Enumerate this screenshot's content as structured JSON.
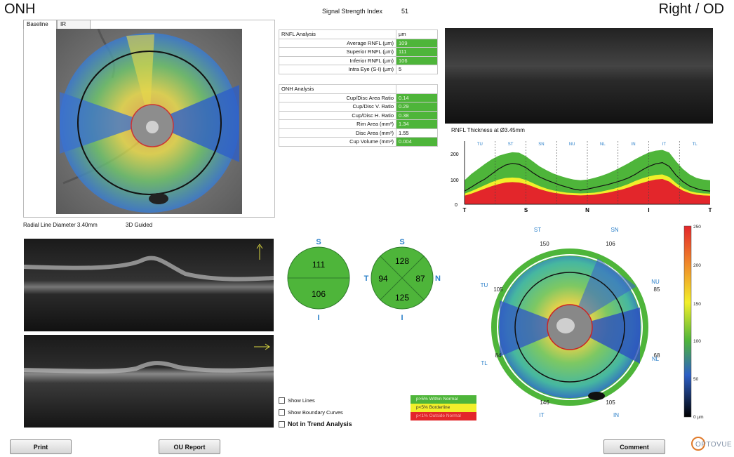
{
  "header": {
    "scan_type": "ONH",
    "eye": "Right / OD",
    "ssi_label": "Signal Strength Index",
    "ssi_value": "51"
  },
  "fundus": {
    "tabs": [
      "Baseline",
      "IR"
    ],
    "radial_line_label": "Radial Line Diameter 3.40mm",
    "mode_label": "3D Guided"
  },
  "rnfl_table": {
    "header": "RNFL Analysis",
    "unit": "µm",
    "rows": [
      {
        "label": "Average RNFL (µm)",
        "value": "109",
        "status": "green"
      },
      {
        "label": "Superior RNFL (µm)",
        "value": "111",
        "status": "green"
      },
      {
        "label": "Inferior RNFL (µm)",
        "value": "106",
        "status": "green"
      },
      {
        "label": "Intra Eye (S-I) (µm)",
        "value": "5",
        "status": "none"
      }
    ]
  },
  "onh_table": {
    "header": "ONH Analysis",
    "rows": [
      {
        "label": "Cup/Disc Area Ratio",
        "value": "0.14",
        "status": "green"
      },
      {
        "label": "Cup/Disc V. Ratio",
        "value": "0.29",
        "status": "green"
      },
      {
        "label": "Cup/Disc H. Ratio",
        "value": "0.38",
        "status": "green"
      },
      {
        "label": "Rim Area (mm²)",
        "value": "1.34",
        "status": "green"
      },
      {
        "label": "Disc Area (mm²)",
        "value": "1.55",
        "status": "none"
      },
      {
        "label": "Cup Volume (mm³)",
        "value": "0.004",
        "status": "green"
      }
    ]
  },
  "rnfl_thickness": {
    "label": "RNFL Thickness at Ø3.45mm",
    "sector_labels": [
      "TU",
      "ST",
      "SN",
      "NU",
      "NL",
      "IN",
      "IT",
      "TL"
    ],
    "y_ticks": [
      "200",
      "100",
      "0"
    ],
    "x_ticks": [
      "T",
      "S",
      "N",
      "I",
      "T"
    ]
  },
  "chart_data": {
    "type": "line",
    "title": "RNFL Thickness at Ø3.45mm",
    "x": [
      0,
      10,
      20,
      30,
      40,
      50,
      60,
      70,
      80,
      90,
      100,
      110,
      120,
      130,
      140,
      150,
      160,
      170,
      180,
      190,
      200,
      210,
      220,
      230,
      240,
      250,
      260,
      270,
      280,
      290,
      300,
      310,
      320,
      330,
      340,
      350,
      360
    ],
    "series": [
      {
        "name": "",
        "values": [
          52,
          68,
          85,
          100,
          120,
          140,
          155,
          162,
          158,
          145,
          125,
          108,
          96,
          86,
          76,
          68,
          60,
          56,
          60,
          66,
          72,
          78,
          86,
          94,
          104,
          118,
          135,
          150,
          160,
          165,
          150,
          115,
          90,
          72,
          62,
          55,
          52
        ]
      }
    ],
    "xticks": [
      "T",
      "S",
      "N",
      "I",
      "T"
    ],
    "ylim": [
      0,
      250
    ],
    "normative_bands": {
      "upper_green": [
        95,
        120,
        140,
        160,
        178,
        192,
        200,
        206,
        204,
        190,
        170,
        150,
        135,
        122,
        112,
        104,
        98,
        95,
        98,
        104,
        112,
        122,
        134,
        148,
        162,
        178,
        192,
        205,
        212,
        215,
        205,
        170,
        140,
        118,
        104,
        98,
        95
      ],
      "yellow_top": [
        42,
        52,
        64,
        76,
        88,
        98,
        104,
        106,
        104,
        96,
        84,
        72,
        62,
        55,
        50,
        46,
        44,
        43,
        44,
        46,
        50,
        56,
        62,
        70,
        80,
        92,
        102,
        110,
        116,
        118,
        108,
        84,
        64,
        52,
        46,
        43,
        42
      ],
      "red_top": [
        34,
        42,
        52,
        62,
        72,
        80,
        86,
        88,
        86,
        80,
        70,
        60,
        52,
        46,
        42,
        38,
        36,
        35,
        36,
        38,
        42,
        46,
        52,
        58,
        66,
        76,
        84,
        92,
        98,
        100,
        90,
        70,
        54,
        44,
        38,
        35,
        34
      ]
    }
  },
  "sector_maps": {
    "hemi": {
      "top_label": "S",
      "bottom_label": "I",
      "superior": "111",
      "inferior": "106"
    },
    "quad": {
      "top_label": "S",
      "bottom_label": "I",
      "left_label": "T",
      "right_label": "N",
      "s": "128",
      "t": "94",
      "n": "87",
      "i": "125"
    }
  },
  "clock_map": {
    "labels": {
      "ST": "ST",
      "SN": "SN",
      "TU": "TU",
      "NU": "NU",
      "TL": "TL",
      "NL": "NL",
      "IT": "IT",
      "IN": "IN"
    },
    "values": {
      "st": "150",
      "sn": "106",
      "tu": "105",
      "nu": "85",
      "tl": "84",
      "nl": "68",
      "it": "146",
      "in": "105"
    }
  },
  "color_scale": {
    "ticks": [
      "250",
      "200",
      "150",
      "100",
      "50",
      "0 µm"
    ]
  },
  "options": {
    "show_lines": "Show Lines",
    "show_boundary": "Show Boundary Curves",
    "not_in_trend": "Not in Trend Analysis"
  },
  "legend": [
    {
      "label": "p>5% Within Normal",
      "color": "#4eb53a"
    },
    {
      "label": "p<5% Borderline",
      "color": "#f2ef2a"
    },
    {
      "label": "p<1% Outside Normal",
      "color": "#e3262b"
    }
  ],
  "buttons": {
    "print": "Print",
    "ou_report": "OU Report",
    "comment": "Comment"
  },
  "logo": "OPTOVUE"
}
